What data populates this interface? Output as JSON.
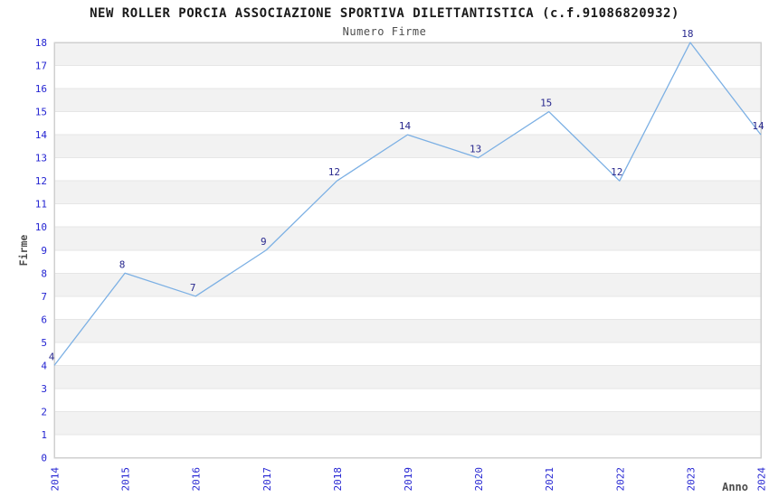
{
  "title": "NEW ROLLER PORCIA ASSOCIAZIONE SPORTIVA DILETTANTISTICA (c.f.91086820932)",
  "subtitle": "Numero Firme",
  "chart_data": {
    "type": "line",
    "x": [
      "2014",
      "2015",
      "2016",
      "2017",
      "2018",
      "2019",
      "2020",
      "2021",
      "2022",
      "2023",
      "2024"
    ],
    "values": [
      4,
      8,
      7,
      9,
      12,
      14,
      13,
      15,
      12,
      18,
      14
    ],
    "title": "NEW ROLLER PORCIA ASSOCIAZIONE SPORTIVA DILETTANTISTICA (c.f.91086820932)",
    "subtitle": "Numero Firme",
    "xlabel": "Anno",
    "ylabel": "Firme",
    "ylim": [
      0,
      18
    ],
    "ytick_step": 1,
    "grid": "horizontal-stripes",
    "legend": "none",
    "point_labels_visible": true,
    "colors": {
      "line": "#7cb0e4",
      "tick_labels": "#2424d2",
      "point_labels": "#28288e",
      "stripe": "#f2f2f2",
      "gridline": "#e6e6e6",
      "plot_border": "#cfcfcf",
      "title": "#1a1a1a",
      "subtitle": "#4d4d4d",
      "axis_titles": "#4d4d4d",
      "background": "#ffffff"
    }
  }
}
